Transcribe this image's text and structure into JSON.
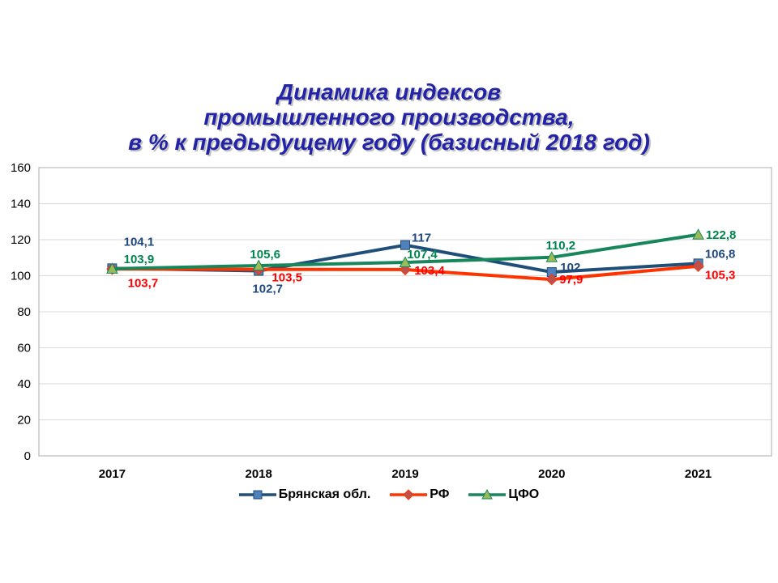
{
  "slide": {
    "title_lines": [
      "Динамика индексов",
      "промышленного производства,",
      "в % к предыдущему году (базисный 2018 год)"
    ],
    "title_color": "#2323A8"
  },
  "chart_data": {
    "type": "line",
    "title": "Динамика индексов промышленного производства, в % к предыдущему году (базисный 2018 год)",
    "categories": [
      "2017",
      "2018",
      "2019",
      "2020",
      "2021"
    ],
    "ylim": [
      0,
      160
    ],
    "yticks": [
      0,
      20,
      40,
      60,
      80,
      100,
      120,
      140,
      160
    ],
    "grid": "horizontal-only",
    "gridline_color": "#D9D9D9",
    "plot_border_color": "#BFBFBF",
    "axis_text_color": "#000000",
    "legend_position": "bottom",
    "series": [
      {
        "name": "Брянская обл.",
        "values": [
          104.1,
          102.7,
          117,
          102,
          106.8
        ],
        "labels": [
          "104,1",
          "102,7",
          "117",
          "102",
          "106,8"
        ],
        "color": "#1F4E79",
        "marker": "square",
        "marker_fill": "#4F81BD",
        "label_color": "#1F497D",
        "label_offsets": [
          [
            33,
            -33
          ],
          [
            11,
            22
          ],
          [
            20,
            -9
          ],
          [
            23,
            -6
          ],
          [
            27,
            -12
          ]
        ]
      },
      {
        "name": "РФ",
        "values": [
          103.7,
          103.5,
          103.4,
          97.9,
          105.3
        ],
        "labels": [
          "103,7",
          "103,5",
          "103,4",
          "97,9",
          "105,3"
        ],
        "color": "#FF3300",
        "marker": "diamond",
        "marker_fill": "#C0504D",
        "label_color": "#FF0000",
        "label_offsets": [
          [
            38,
            17
          ],
          [
            35,
            10
          ],
          [
            30,
            1
          ],
          [
            24,
            0
          ],
          [
            27,
            11
          ]
        ]
      },
      {
        "name": "ЦФО",
        "values": [
          103.9,
          105.6,
          107.4,
          110.2,
          122.8
        ],
        "labels": [
          "103,9",
          "105,6",
          "107,4",
          "110,2",
          "122,8"
        ],
        "color": "#17875B",
        "marker": "triangle-up",
        "marker_fill": "#9BBB59",
        "label_color": "#00864F",
        "label_offsets": [
          [
            33,
            -12
          ],
          [
            8,
            -14
          ],
          [
            21,
            -10
          ],
          [
            11,
            -15
          ],
          [
            28,
            0
          ]
        ]
      }
    ]
  }
}
